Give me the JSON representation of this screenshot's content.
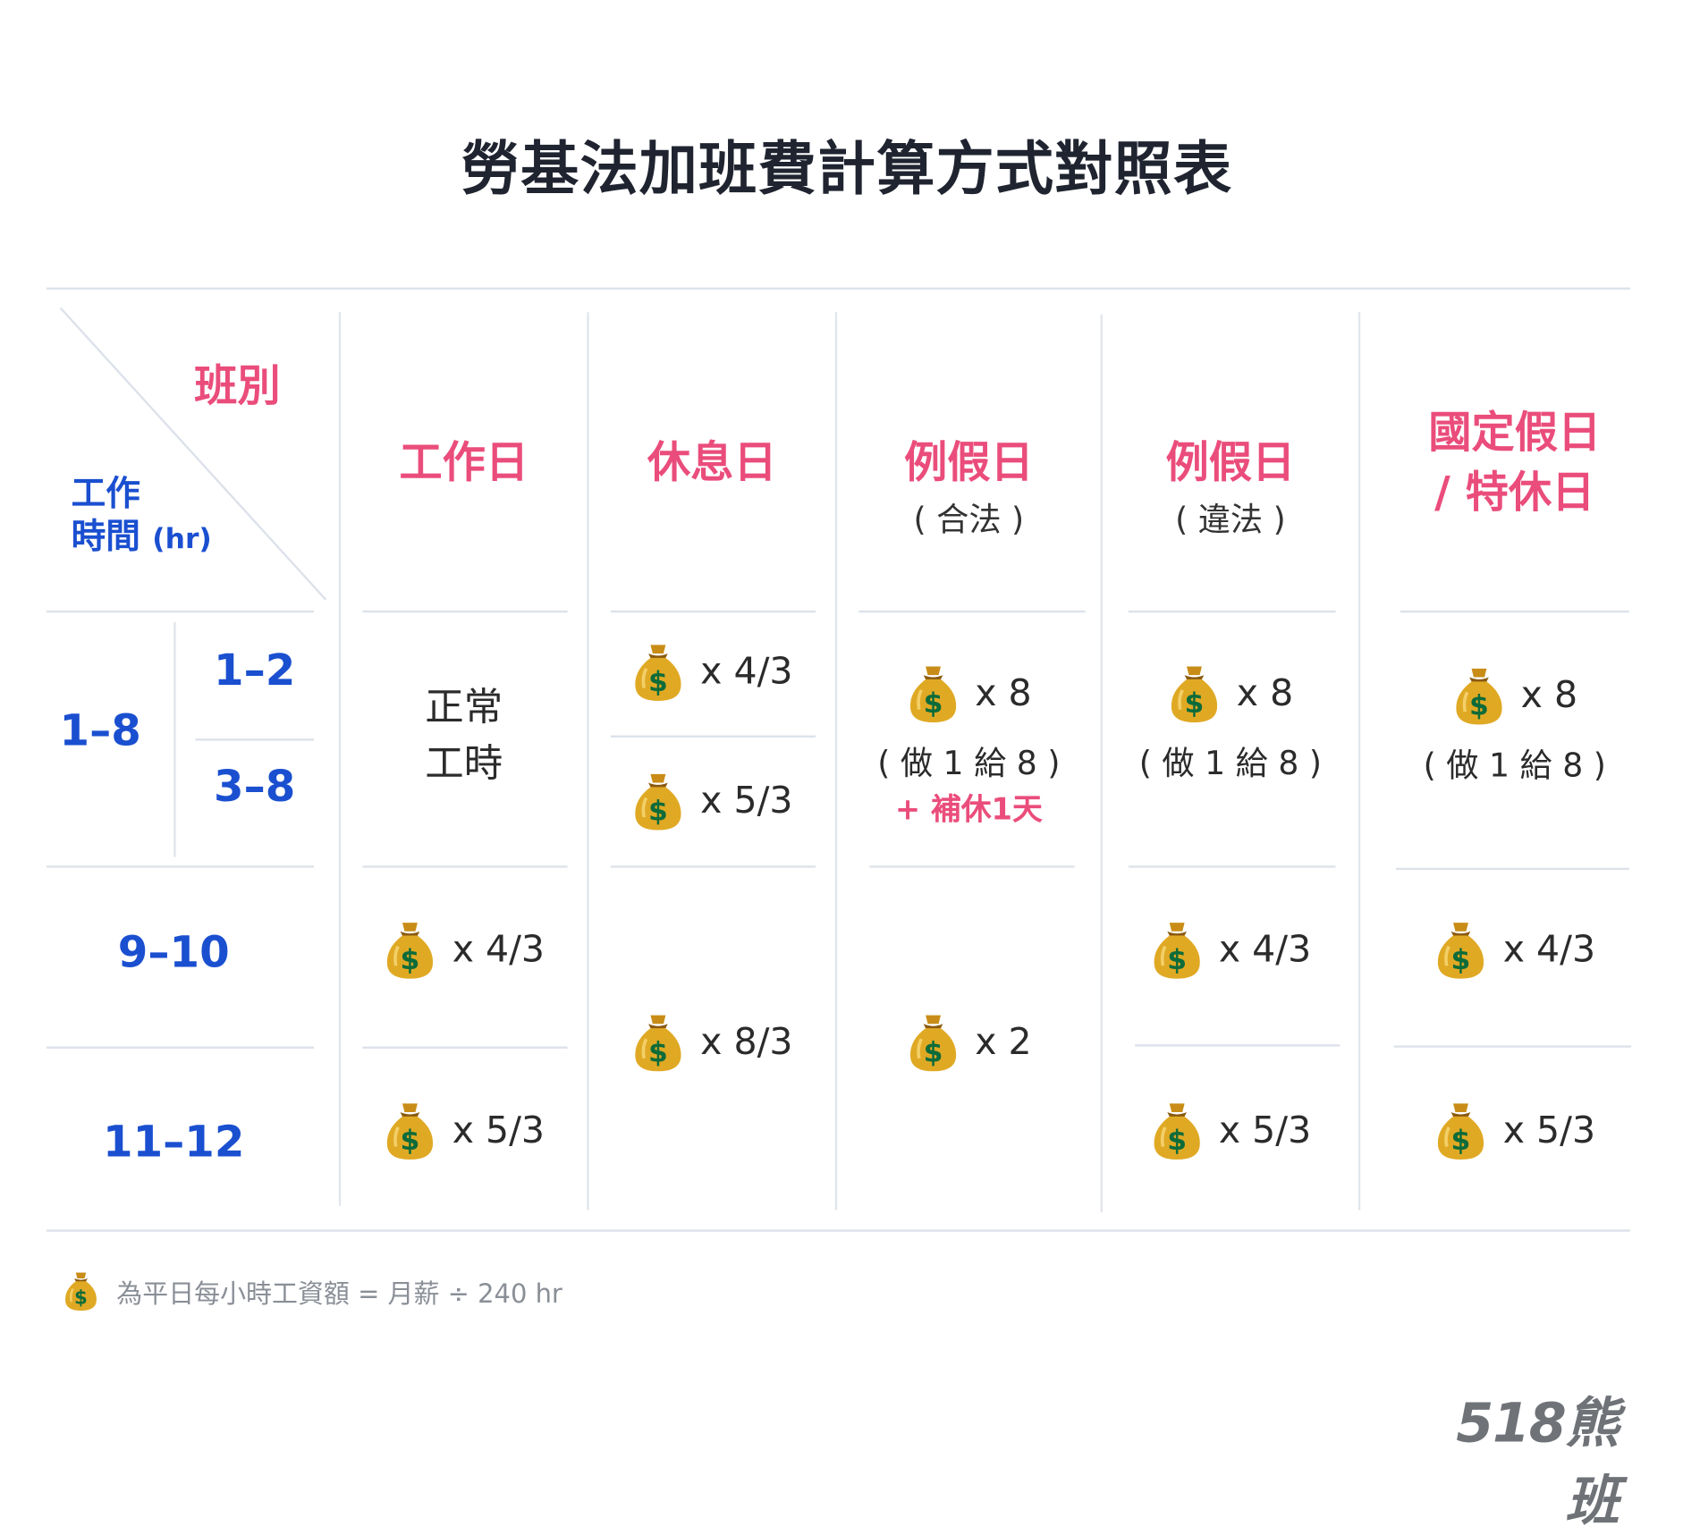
{
  "title": "勞基法加班費計算方式對照表",
  "corner": {
    "shift_label": "班別",
    "hours_label_line1": "工作",
    "hours_label_line2": "時間",
    "hours_unit": "(hr)"
  },
  "columns": [
    {
      "title": "工作日",
      "subtitle": ""
    },
    {
      "title": "休息日",
      "subtitle": ""
    },
    {
      "title": "例假日",
      "subtitle": "( 合法 )"
    },
    {
      "title": "例假日",
      "subtitle": "( 違法 )"
    },
    {
      "title_line1": "國定假日",
      "title_line2": "/ 特休日"
    }
  ],
  "row_labels": {
    "main_1_8": "1–8",
    "sub_1_2": "1–2",
    "sub_3_8": "3–8",
    "r_9_10": "9–10",
    "r_11_12": "11–12"
  },
  "cells": {
    "workday": {
      "normal_line1": "正常",
      "normal_line2": "工時",
      "r_9_10": "x 4/3",
      "r_11_12": "x 5/3"
    },
    "restday": {
      "r_1_2": "x 4/3",
      "r_3_8": "x 5/3",
      "r_9_12": "x 8/3"
    },
    "legal_holiday": {
      "r_1_8": "x 8",
      "r_1_8_note": "( 做 1 給 8 )",
      "r_1_8_extra": "+ 補休1天",
      "r_9_12": "x 2"
    },
    "illegal_holiday": {
      "r_1_8": "x 8",
      "r_1_8_note": "( 做 1 給 8 )",
      "r_9_10": "x 4/3",
      "r_11_12": "x 5/3"
    },
    "national_holiday": {
      "r_1_8": "x 8",
      "r_1_8_note": "( 做 1 給 8 )",
      "r_9_10": "x 4/3",
      "r_11_12": "x 5/3"
    }
  },
  "footer_note": "為平日每小時工資額 = 月薪 ÷ 240 hr",
  "logo": "518熊班",
  "icons": {
    "money": "money-bag-icon"
  },
  "colors": {
    "header_pink": "#ea4d7b",
    "hours_blue": "#1a4fd0",
    "gridline": "#dde2ea",
    "bag_gold": "#d9a520",
    "bag_dollar": "#0d6b3a"
  }
}
